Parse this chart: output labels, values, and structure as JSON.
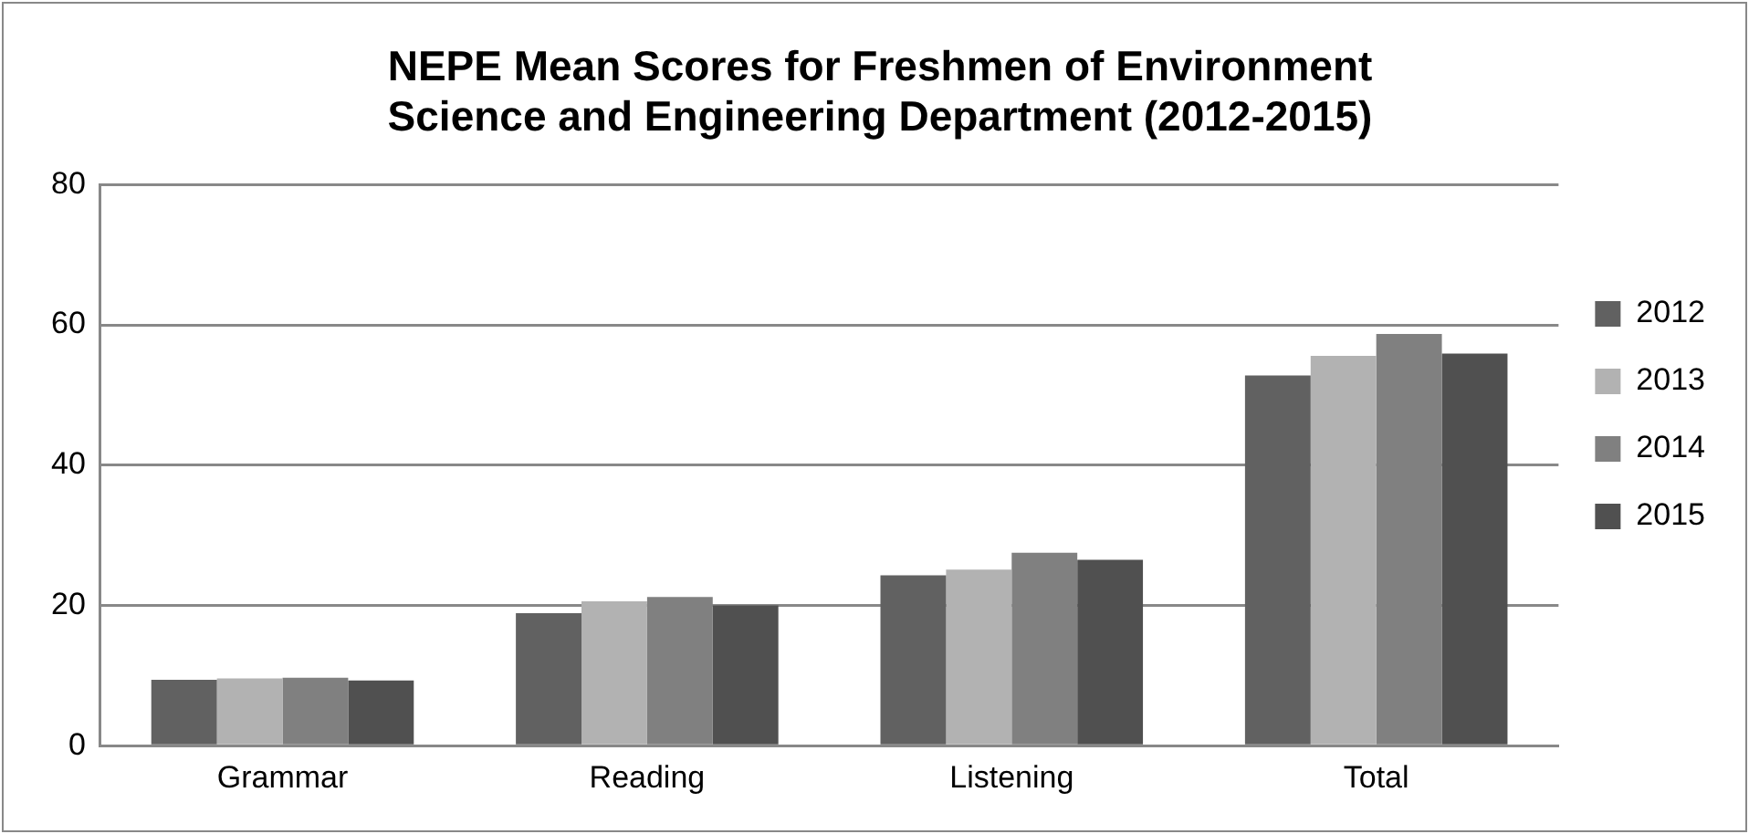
{
  "chart_data": {
    "type": "bar",
    "title": "NEPE Mean Scores for Freshmen of Environment Science and Engineering Department (2012-2015)",
    "categories": [
      "Grammar",
      "Reading",
      "Listening",
      "Total"
    ],
    "series": [
      {
        "name": "2012",
        "color": "#616161",
        "values": [
          9.4,
          18.9,
          24.3,
          52.8
        ]
      },
      {
        "name": "2013",
        "color": "#b2b2b2",
        "values": [
          9.6,
          20.6,
          25.1,
          55.6
        ]
      },
      {
        "name": "2014",
        "color": "#808080",
        "values": [
          9.7,
          21.2,
          27.5,
          58.7
        ]
      },
      {
        "name": "2015",
        "color": "#505050",
        "values": [
          9.3,
          20.0,
          26.5,
          55.9
        ]
      }
    ],
    "ylim": [
      0,
      80
    ],
    "yticks": [
      0,
      20,
      40,
      60,
      80
    ],
    "grid": "y",
    "legend": "right"
  }
}
